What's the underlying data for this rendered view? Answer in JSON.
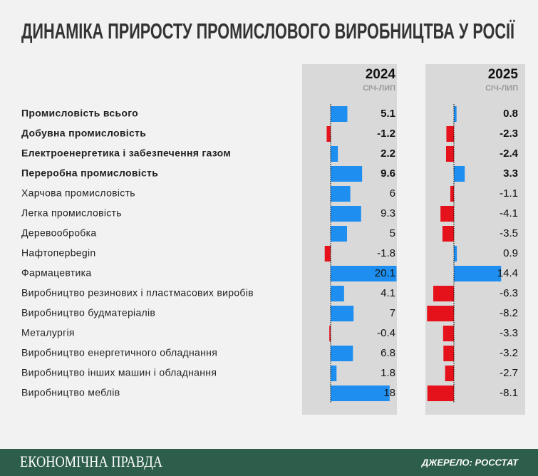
{
  "chart_data": {
    "type": "bar",
    "title": "ДИНАМІКА ПРИРОСТУ ПРОМИСЛОВОГО ВИРОБНИЦТВА У РОСІЇ",
    "categories": [
      "Промисловість всього",
      "Добувна промисловість",
      "Електроенергетика і забезпечення газом",
      "Переробна промисловість",
      "Харчова промисловість",
      "Легка промисловість",
      "Деревообробка",
      "Нафтоперbegin",
      "Фармацевтика",
      "Виробництво резинових і пластмасових виробів",
      "Виробництво будматеріалів",
      "Металургія",
      "Виробництво енергетичного обладнання",
      "Виробництво інших машин і обладнання",
      "Виробництво меблів"
    ],
    "series": [
      {
        "name": "2024",
        "period": "СІЧ-ЛИП",
        "values": [
          5.1,
          -1.2,
          2.2,
          9.6,
          6,
          9.3,
          5,
          -1.8,
          20.1,
          4.1,
          7,
          -0.4,
          6.8,
          1.8,
          18
        ]
      },
      {
        "name": "2025",
        "period": "СІЧ-ЛИП",
        "values": [
          0.8,
          -2.3,
          -2.4,
          3.3,
          -1.1,
          -4.1,
          -3.5,
          0.9,
          14.4,
          -6.3,
          -8.2,
          -3.3,
          -3.2,
          -2.7,
          -8.1
        ]
      }
    ],
    "positive_color": "#1e8ff0",
    "negative_color": "#e5121b",
    "bold_categories": [
      0,
      1,
      2,
      3
    ]
  },
  "footer": {
    "brand": "ЕКОНОМІЧНА ПРАВДА",
    "source": "ДЖЕРЕЛО: РОССТАТ"
  }
}
